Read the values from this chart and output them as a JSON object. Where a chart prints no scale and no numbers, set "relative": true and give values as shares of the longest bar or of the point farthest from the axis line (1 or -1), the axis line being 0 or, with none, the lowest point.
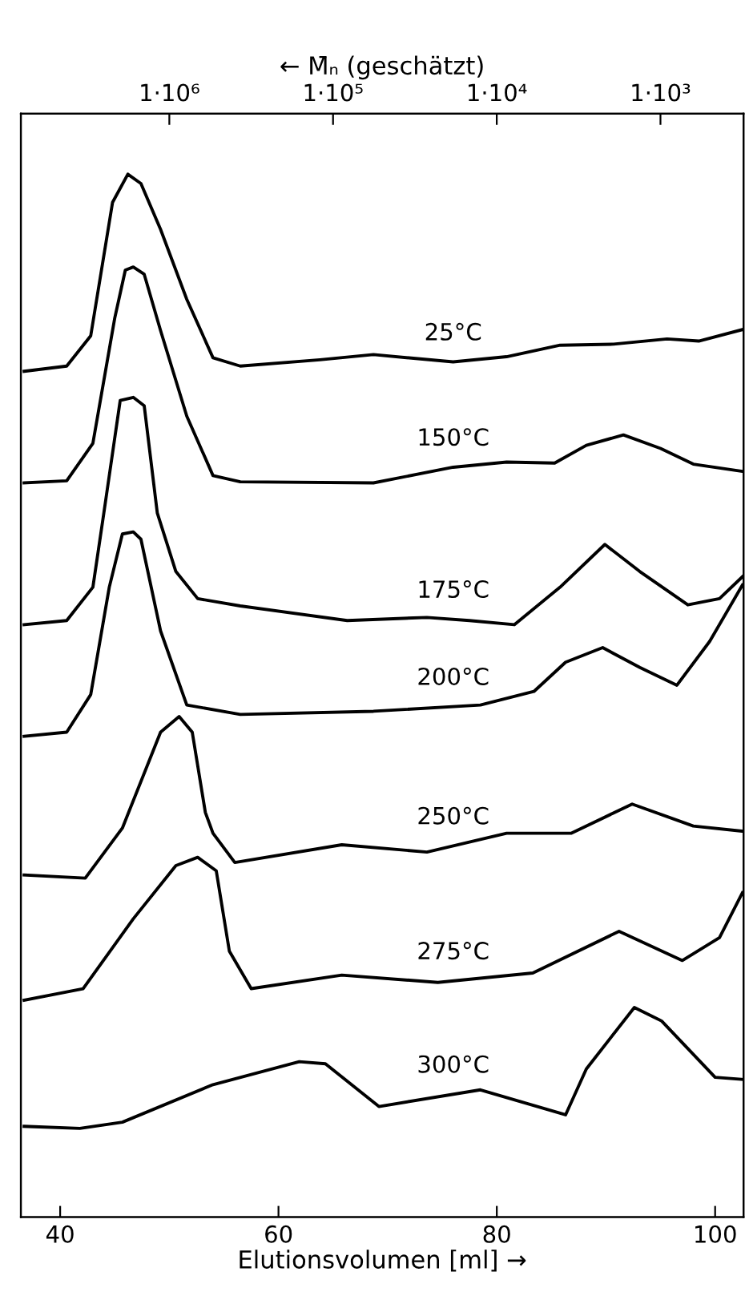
{
  "chart_data": {
    "type": "line",
    "relative": true,
    "xlabel": "Elutionsvolumen [ml] →",
    "x2label": "← M̄ₙ (geschätzt)",
    "xlim": [
      36.4,
      102.6
    ],
    "xticks": [
      40,
      60,
      80,
      100
    ],
    "x2lim": [
      8070000,
      311
    ],
    "log": "x2",
    "x2ticks": [
      {
        "value": 1000000,
        "label": "1·10⁶"
      },
      {
        "value": 100000,
        "label": "1·10⁵"
      },
      {
        "value": 10000,
        "label": "1·10⁴"
      },
      {
        "value": 1000,
        "label": "1·10³"
      }
    ],
    "grid": false,
    "legend": false,
    "marker": "none",
    "line_style": "solid",
    "series": [
      {
        "name": "25°C",
        "color": "#000000",
        "x": [
          36.7,
          40.6,
          42.8,
          44.8,
          46.2,
          47.4,
          49.2,
          51.6,
          54.0,
          56.5,
          63.8,
          68.7,
          76.0,
          80.9,
          85.8,
          90.7,
          95.6,
          98.5,
          102.5
        ],
        "values": [
          0.811,
          0.816,
          0.845,
          0.973,
          1.0,
          0.991,
          0.947,
          0.88,
          0.824,
          0.816,
          0.822,
          0.827,
          0.82,
          0.825,
          0.836,
          0.837,
          0.842,
          0.84,
          0.851
        ]
      },
      {
        "name": "150°C",
        "color": "#000000",
        "x": [
          36.7,
          40.6,
          43.0,
          45.0,
          45.97,
          46.7,
          47.7,
          49.2,
          51.6,
          54.0,
          56.5,
          68.7,
          76.0,
          80.9,
          85.3,
          88.2,
          91.6,
          95.0,
          98.0,
          102.5
        ],
        "values": [
          0.704,
          0.706,
          0.742,
          0.862,
          0.908,
          0.911,
          0.904,
          0.85,
          0.768,
          0.711,
          0.705,
          0.704,
          0.719,
          0.724,
          0.723,
          0.74,
          0.75,
          0.737,
          0.722,
          0.715
        ]
      },
      {
        "name": "175°C",
        "color": "#000000",
        "x": [
          36.7,
          40.6,
          43.0,
          44.0,
          45.5,
          46.7,
          47.7,
          48.9,
          50.6,
          52.6,
          56.5,
          66.3,
          73.6,
          77.5,
          81.6,
          85.8,
          89.9,
          93.1,
          97.5,
          100.4,
          102.5
        ],
        "values": [
          0.568,
          0.572,
          0.604,
          0.675,
          0.783,
          0.786,
          0.778,
          0.675,
          0.619,
          0.593,
          0.586,
          0.572,
          0.575,
          0.572,
          0.568,
          0.604,
          0.645,
          0.619,
          0.587,
          0.593,
          0.614
        ]
      },
      {
        "name": "200°C",
        "color": "#000000",
        "x": [
          36.7,
          40.6,
          42.8,
          44.5,
          45.7,
          46.7,
          47.4,
          49.2,
          51.6,
          56.5,
          68.7,
          78.5,
          83.4,
          86.3,
          89.7,
          93.1,
          96.5,
          99.5,
          102.5
        ],
        "values": [
          0.461,
          0.465,
          0.501,
          0.604,
          0.655,
          0.657,
          0.65,
          0.562,
          0.491,
          0.482,
          0.485,
          0.491,
          0.504,
          0.532,
          0.546,
          0.527,
          0.51,
          0.552,
          0.606
        ]
      },
      {
        "name": "250°C",
        "color": "#000000",
        "x": [
          36.7,
          42.3,
          45.7,
          49.2,
          50.9,
          52.1,
          53.3,
          54.0,
          56.0,
          65.8,
          73.6,
          80.9,
          86.8,
          92.4,
          98.0,
          102.5
        ],
        "values": [
          0.328,
          0.325,
          0.373,
          0.465,
          0.48,
          0.465,
          0.388,
          0.368,
          0.34,
          0.357,
          0.35,
          0.368,
          0.368,
          0.396,
          0.375,
          0.37
        ]
      },
      {
        "name": "275°C",
        "color": "#000000",
        "x": [
          36.7,
          42.1,
          46.7,
          50.6,
          52.6,
          54.3,
          55.5,
          57.5,
          65.8,
          74.6,
          83.3,
          91.2,
          97.0,
          100.4,
          102.5
        ],
        "values": [
          0.208,
          0.219,
          0.286,
          0.337,
          0.345,
          0.332,
          0.255,
          0.219,
          0.232,
          0.225,
          0.234,
          0.274,
          0.246,
          0.268,
          0.311
        ]
      },
      {
        "name": "300°C",
        "color": "#000000",
        "x": [
          36.7,
          41.8,
          45.7,
          54.0,
          61.9,
          64.3,
          69.2,
          78.5,
          86.3,
          88.2,
          92.6,
          95.1,
          100.0,
          102.5
        ],
        "values": [
          0.087,
          0.085,
          0.091,
          0.127,
          0.149,
          0.147,
          0.106,
          0.122,
          0.098,
          0.142,
          0.201,
          0.188,
          0.134,
          0.132
        ]
      }
    ]
  }
}
